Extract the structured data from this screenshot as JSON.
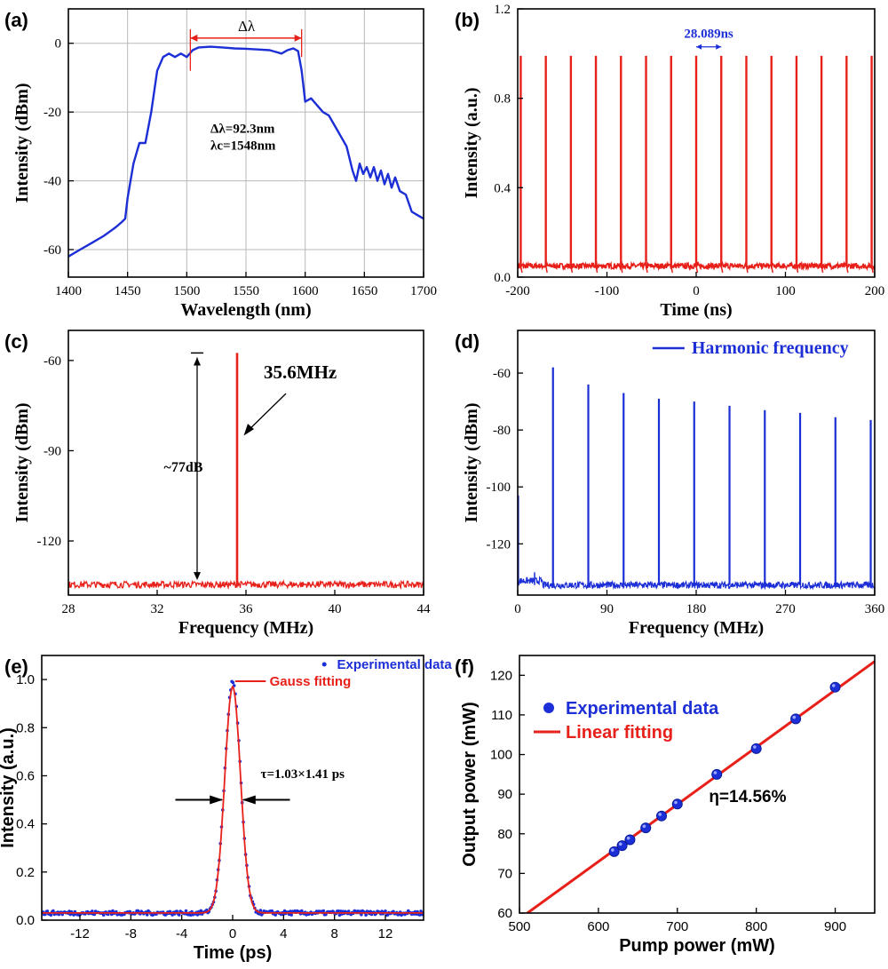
{
  "colors": {
    "blue": "#1c2fd6",
    "red": "#e8201a",
    "frame": "#000000",
    "grid": "#b8b8b8"
  },
  "chart_data": [
    {
      "id": "a",
      "panel_label": "(a)",
      "type": "line",
      "xlabel": "Wavelength (nm)",
      "ylabel": "Intensity (dBm)",
      "xlim": [
        1400,
        1700
      ],
      "ylim": [
        -68,
        10
      ],
      "xticks": [
        1400,
        1450,
        1500,
        1550,
        1600,
        1650,
        1700
      ],
      "yticks": [
        -60,
        -40,
        -20,
        0
      ],
      "grid": true,
      "series": [
        {
          "color": "blue",
          "x": [
            1400,
            1410,
            1420,
            1430,
            1440,
            1445,
            1448,
            1450,
            1455,
            1460,
            1465,
            1470,
            1475,
            1480,
            1485,
            1490,
            1495,
            1500,
            1505,
            1510,
            1520,
            1530,
            1540,
            1550,
            1560,
            1570,
            1575,
            1580,
            1585,
            1590,
            1594,
            1597,
            1600,
            1605,
            1610,
            1615,
            1620,
            1625,
            1630,
            1635,
            1640,
            1643,
            1646,
            1649,
            1652,
            1655,
            1658,
            1661,
            1664,
            1667,
            1670,
            1673,
            1676,
            1680,
            1685,
            1690,
            1695,
            1700
          ],
          "y": [
            -62,
            -60,
            -58,
            -56,
            -53.5,
            -52,
            -51,
            -45,
            -35,
            -29,
            -29,
            -20,
            -8,
            -4,
            -3,
            -4,
            -3,
            -4,
            -2,
            -1.2,
            -1,
            -1.2,
            -1.5,
            -1.6,
            -1.8,
            -2,
            -2.5,
            -3,
            -2,
            -1.5,
            -2.3,
            -8,
            -17,
            -16,
            -18,
            -20,
            -21,
            -24,
            -27,
            -30,
            -37,
            -40,
            -35,
            -38,
            -36,
            -39,
            -36,
            -40,
            -37,
            -41,
            -38,
            -42,
            -39,
            -43,
            -44,
            -49,
            -50,
            -51
          ]
        }
      ],
      "annotations": [
        {
          "text": "Δλ",
          "x": 1550,
          "y": 3.5,
          "arrow_from": 1503,
          "arrow_to": 1597,
          "arrow_y": 1.5
        },
        {
          "text": "Δλ=92.3nm",
          "x": 1505,
          "y": -26
        },
        {
          "text": "λc=1548nm",
          "x": 1505,
          "y": -31
        }
      ]
    },
    {
      "id": "b",
      "panel_label": "(b)",
      "type": "line",
      "xlabel": "Time (ns)",
      "ylabel": "Intensity (a.u.)",
      "xlim": [
        -200,
        200
      ],
      "ylim": [
        0,
        1.2
      ],
      "xticks": [
        -200,
        -100,
        0,
        100,
        200
      ],
      "yticks": [
        0.0,
        0.4,
        0.8,
        1.2
      ],
      "grid": false,
      "series": [
        {
          "color": "red",
          "pulse_period_ns": 28.089,
          "pulse_positions": [
            -196.6,
            -168.5,
            -140.4,
            -112.4,
            -84.3,
            -56.2,
            -28.1,
            0,
            28.1,
            56.2,
            84.3,
            112.4,
            140.4,
            168.5,
            196.6
          ],
          "pulse_peak": 0.99,
          "baseline": 0.05
        }
      ],
      "annotations": [
        {
          "text": "28.089ns",
          "x": 14,
          "y": 1.07,
          "arrow_from": 0,
          "arrow_to": 28.089,
          "arrow_y": 1.03
        }
      ]
    },
    {
      "id": "c",
      "panel_label": "(c)",
      "type": "line",
      "xlabel": "Frequency (MHz)",
      "ylabel": "Intensity (dBm)",
      "xlim": [
        28,
        44
      ],
      "ylim": [
        -138,
        -50
      ],
      "xticks": [
        28,
        32,
        36,
        40,
        44
      ],
      "yticks": [
        -120,
        -90,
        -60
      ],
      "grid": false,
      "series": [
        {
          "color": "red",
          "peak_x": 35.6,
          "peak_y": -57.5,
          "noise_floor": -134.5
        }
      ],
      "annotations": [
        {
          "text": "35.6MHz",
          "x": 36.8,
          "y": -66
        },
        {
          "text": "~77dB",
          "x": 32.3,
          "y": -97
        }
      ]
    },
    {
      "id": "d",
      "panel_label": "(d)",
      "type": "line",
      "xlabel": "Frequency (MHz)",
      "ylabel": "Intensity (dBm)",
      "xlim": [
        0,
        360
      ],
      "ylim": [
        -138,
        -45
      ],
      "xticks": [
        0,
        90,
        180,
        270,
        360
      ],
      "yticks": [
        -120,
        -100,
        -80,
        -60
      ],
      "grid": false,
      "legend": {
        "position": "top-right",
        "entries": [
          "Harmonic frequency"
        ]
      },
      "series": [
        {
          "name": "Harmonic frequency",
          "color": "blue",
          "x": [
            35.6,
            71.2,
            106.8,
            142.4,
            178,
            213.6,
            249.2,
            284.8,
            320.4,
            356
          ],
          "y": [
            -58,
            -64,
            -67,
            -69,
            -70,
            -71.5,
            -73,
            -74,
            -75.5,
            -76.5
          ],
          "noise_floor": -134.5
        }
      ]
    },
    {
      "id": "e",
      "panel_label": "(e)",
      "type": "scatter",
      "xlabel": "Time (ps)",
      "ylabel": "Intensity (a.u.)",
      "xlim": [
        -15,
        15
      ],
      "ylim": [
        0,
        1.1
      ],
      "xticks": [
        -12,
        -8,
        -4,
        0,
        4,
        8,
        12
      ],
      "yticks": [
        0.0,
        0.2,
        0.4,
        0.6,
        0.8,
        1.0
      ],
      "grid": false,
      "legend": {
        "position": "top-right",
        "entries": [
          "Experimental data",
          "Gauss fitting"
        ]
      },
      "series": [
        {
          "name": "Experimental data",
          "color": "blue",
          "kind": "points",
          "center": 0,
          "fwhm_ps": 1.45,
          "peak": 0.99,
          "baseline": 0.03
        },
        {
          "name": "Gauss fitting",
          "color": "red",
          "kind": "line",
          "center": 0,
          "fwhm_ps": 1.45,
          "peak": 0.97,
          "baseline": 0.03
        }
      ],
      "annotations": [
        {
          "text": "τ=1.03×1.41 ps",
          "x": 2.2,
          "y": 0.5
        }
      ]
    },
    {
      "id": "f",
      "panel_label": "(f)",
      "type": "scatter",
      "xlabel": "Pump power (mW)",
      "ylabel": "Output power (mW)",
      "xlim": [
        500,
        950
      ],
      "ylim": [
        60,
        125
      ],
      "xticks": [
        500,
        600,
        700,
        800,
        900
      ],
      "yticks": [
        60,
        70,
        80,
        90,
        100,
        110,
        120
      ],
      "grid": false,
      "legend": {
        "position": "top-left",
        "entries": [
          "Experimental data",
          "Linear fitting"
        ]
      },
      "series": [
        {
          "name": "Experimental data",
          "color": "blue",
          "x": [
            620,
            630,
            640,
            660,
            680,
            700,
            750,
            800,
            850,
            900
          ],
          "y": [
            75.5,
            77,
            78.5,
            81.5,
            84.5,
            87.5,
            95,
            101.5,
            109,
            117
          ]
        },
        {
          "name": "Linear fitting",
          "color": "red",
          "x": [
            510,
            950
          ],
          "y": [
            60,
            123.5
          ]
        }
      ],
      "annotations": [
        {
          "text": "η=14.56%",
          "x": 740,
          "y": 88
        }
      ]
    }
  ]
}
